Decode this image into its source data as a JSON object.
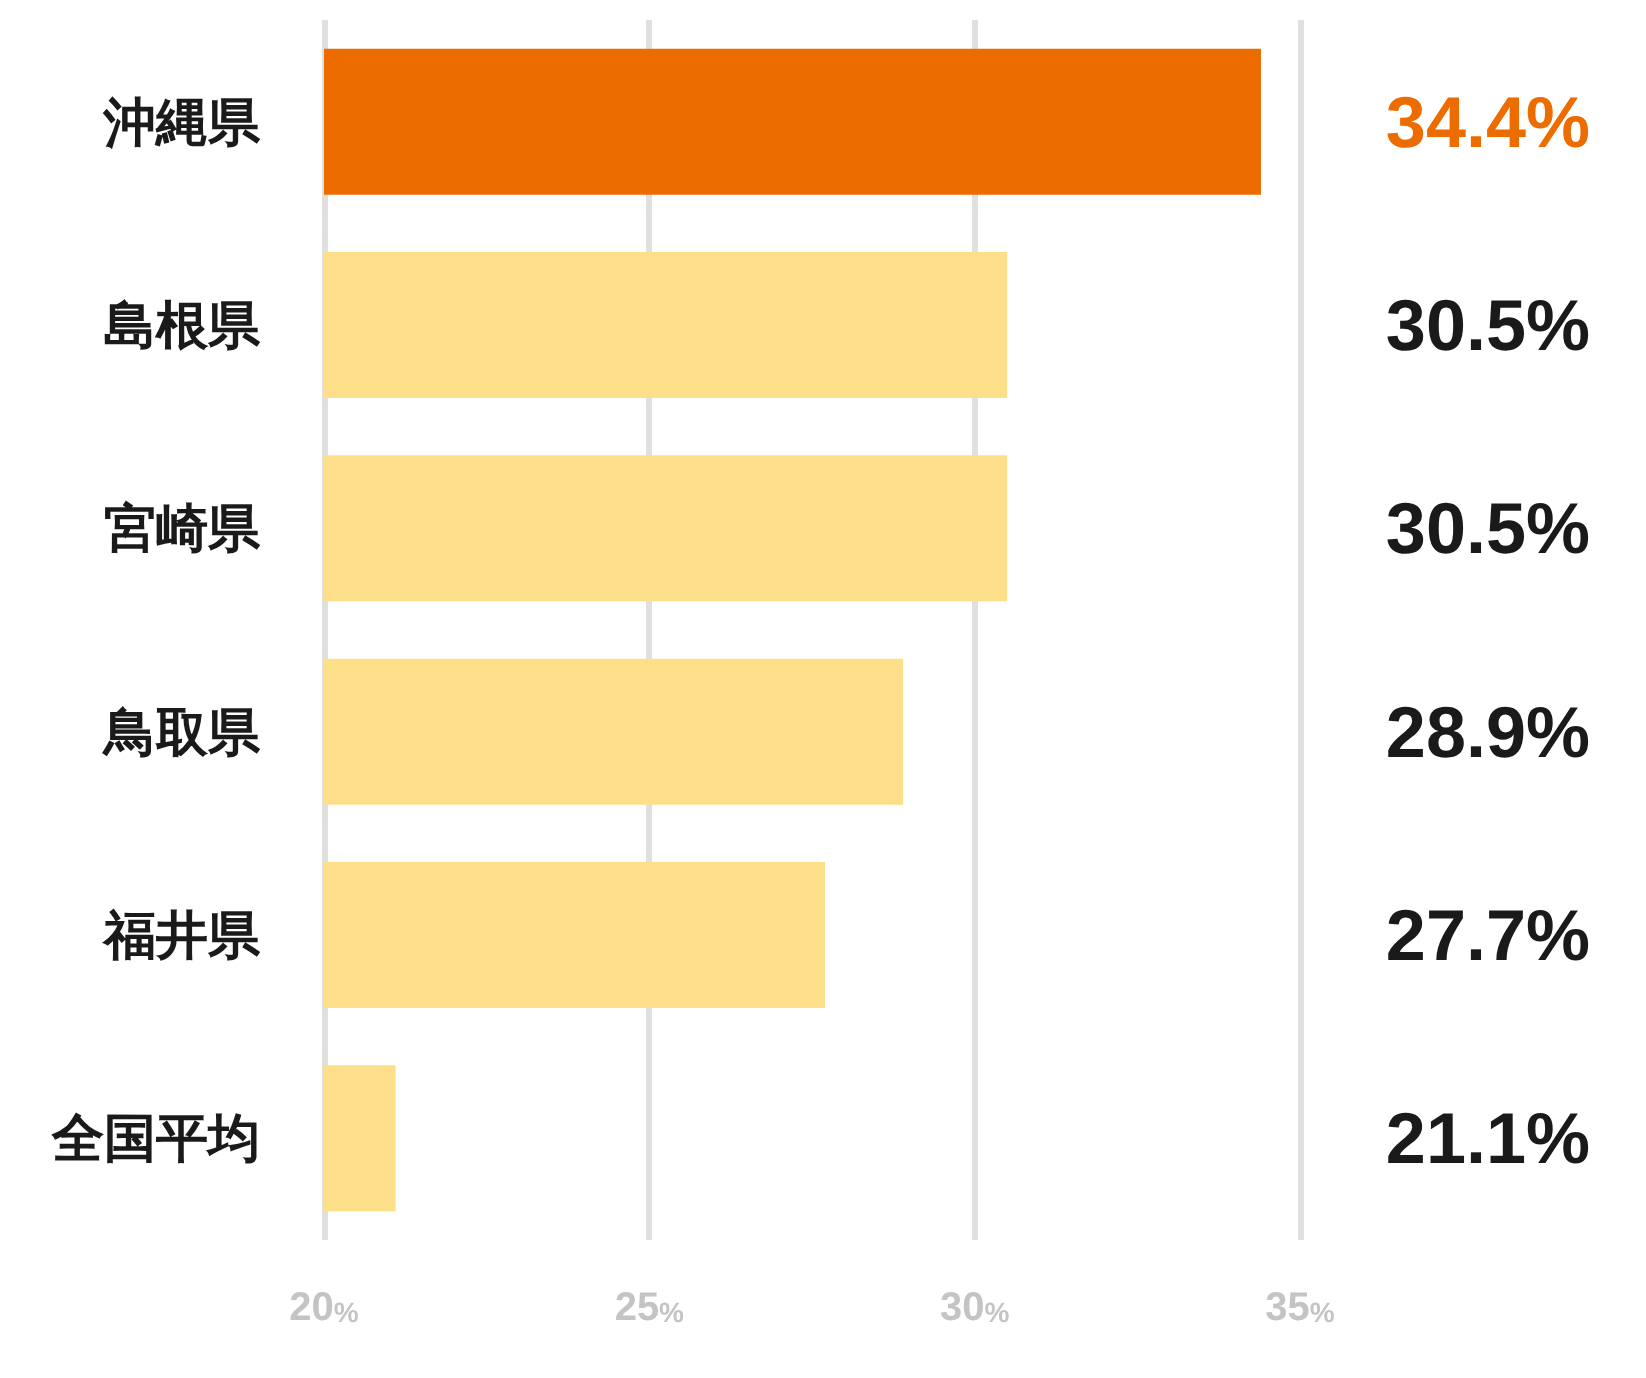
{
  "chart_data": {
    "type": "bar",
    "orientation": "horizontal",
    "categories": [
      "沖縄県",
      "島根県",
      "宮崎県",
      "鳥取県",
      "福井県",
      "全国平均"
    ],
    "values": [
      34.4,
      30.5,
      30.5,
      28.9,
      27.7,
      21.1
    ],
    "colors": [
      "#ec6c00",
      "#fddf8a",
      "#fddf8a",
      "#fddf8a",
      "#fddf8a",
      "#fddf8a"
    ],
    "value_labels": [
      "34.4%",
      "30.5%",
      "30.5%",
      "28.9%",
      "27.7%",
      "21.1%"
    ],
    "xlim": [
      20,
      35
    ],
    "xticks": [
      {
        "value": 20,
        "label": "20%"
      },
      {
        "value": 25,
        "label": "25%"
      },
      {
        "value": 30,
        "label": "30%"
      },
      {
        "value": 35,
        "label": "35%"
      }
    ],
    "grid": "x"
  }
}
